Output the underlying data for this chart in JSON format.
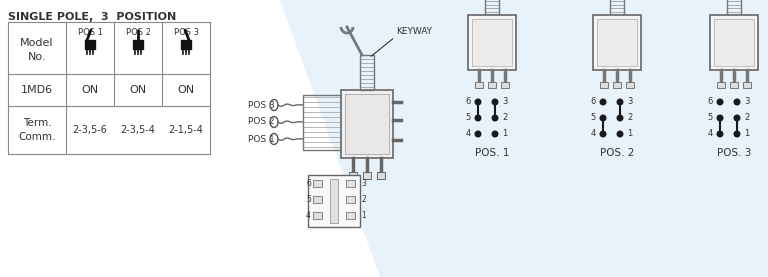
{
  "title": "SINGLE POLE,  3  POSITION",
  "bg_color": "#ffffff",
  "table_border_color": "#888888",
  "text_color": "#333333",
  "light_blue_color": "#cce0f0",
  "table": {
    "row1_col0": "1MD6",
    "row1_col1": "ON",
    "row1_col2": "ON",
    "row1_col3": "ON",
    "row2_col0": "Term.\nComm.",
    "row2_col1": "2-3,5-6",
    "row2_col2": "2-3,5-4",
    "row2_col3": "2-1,5-4"
  },
  "keyway_label": "KEYWAY",
  "pos_labels_left": [
    "POS 3",
    "POS 2",
    "POS 1"
  ],
  "switch_positions": [
    "POS. 1",
    "POS. 2",
    "POS. 3"
  ],
  "pin_left": [
    "6",
    "5",
    "4"
  ],
  "pin_right": [
    "3",
    "2",
    "1"
  ]
}
